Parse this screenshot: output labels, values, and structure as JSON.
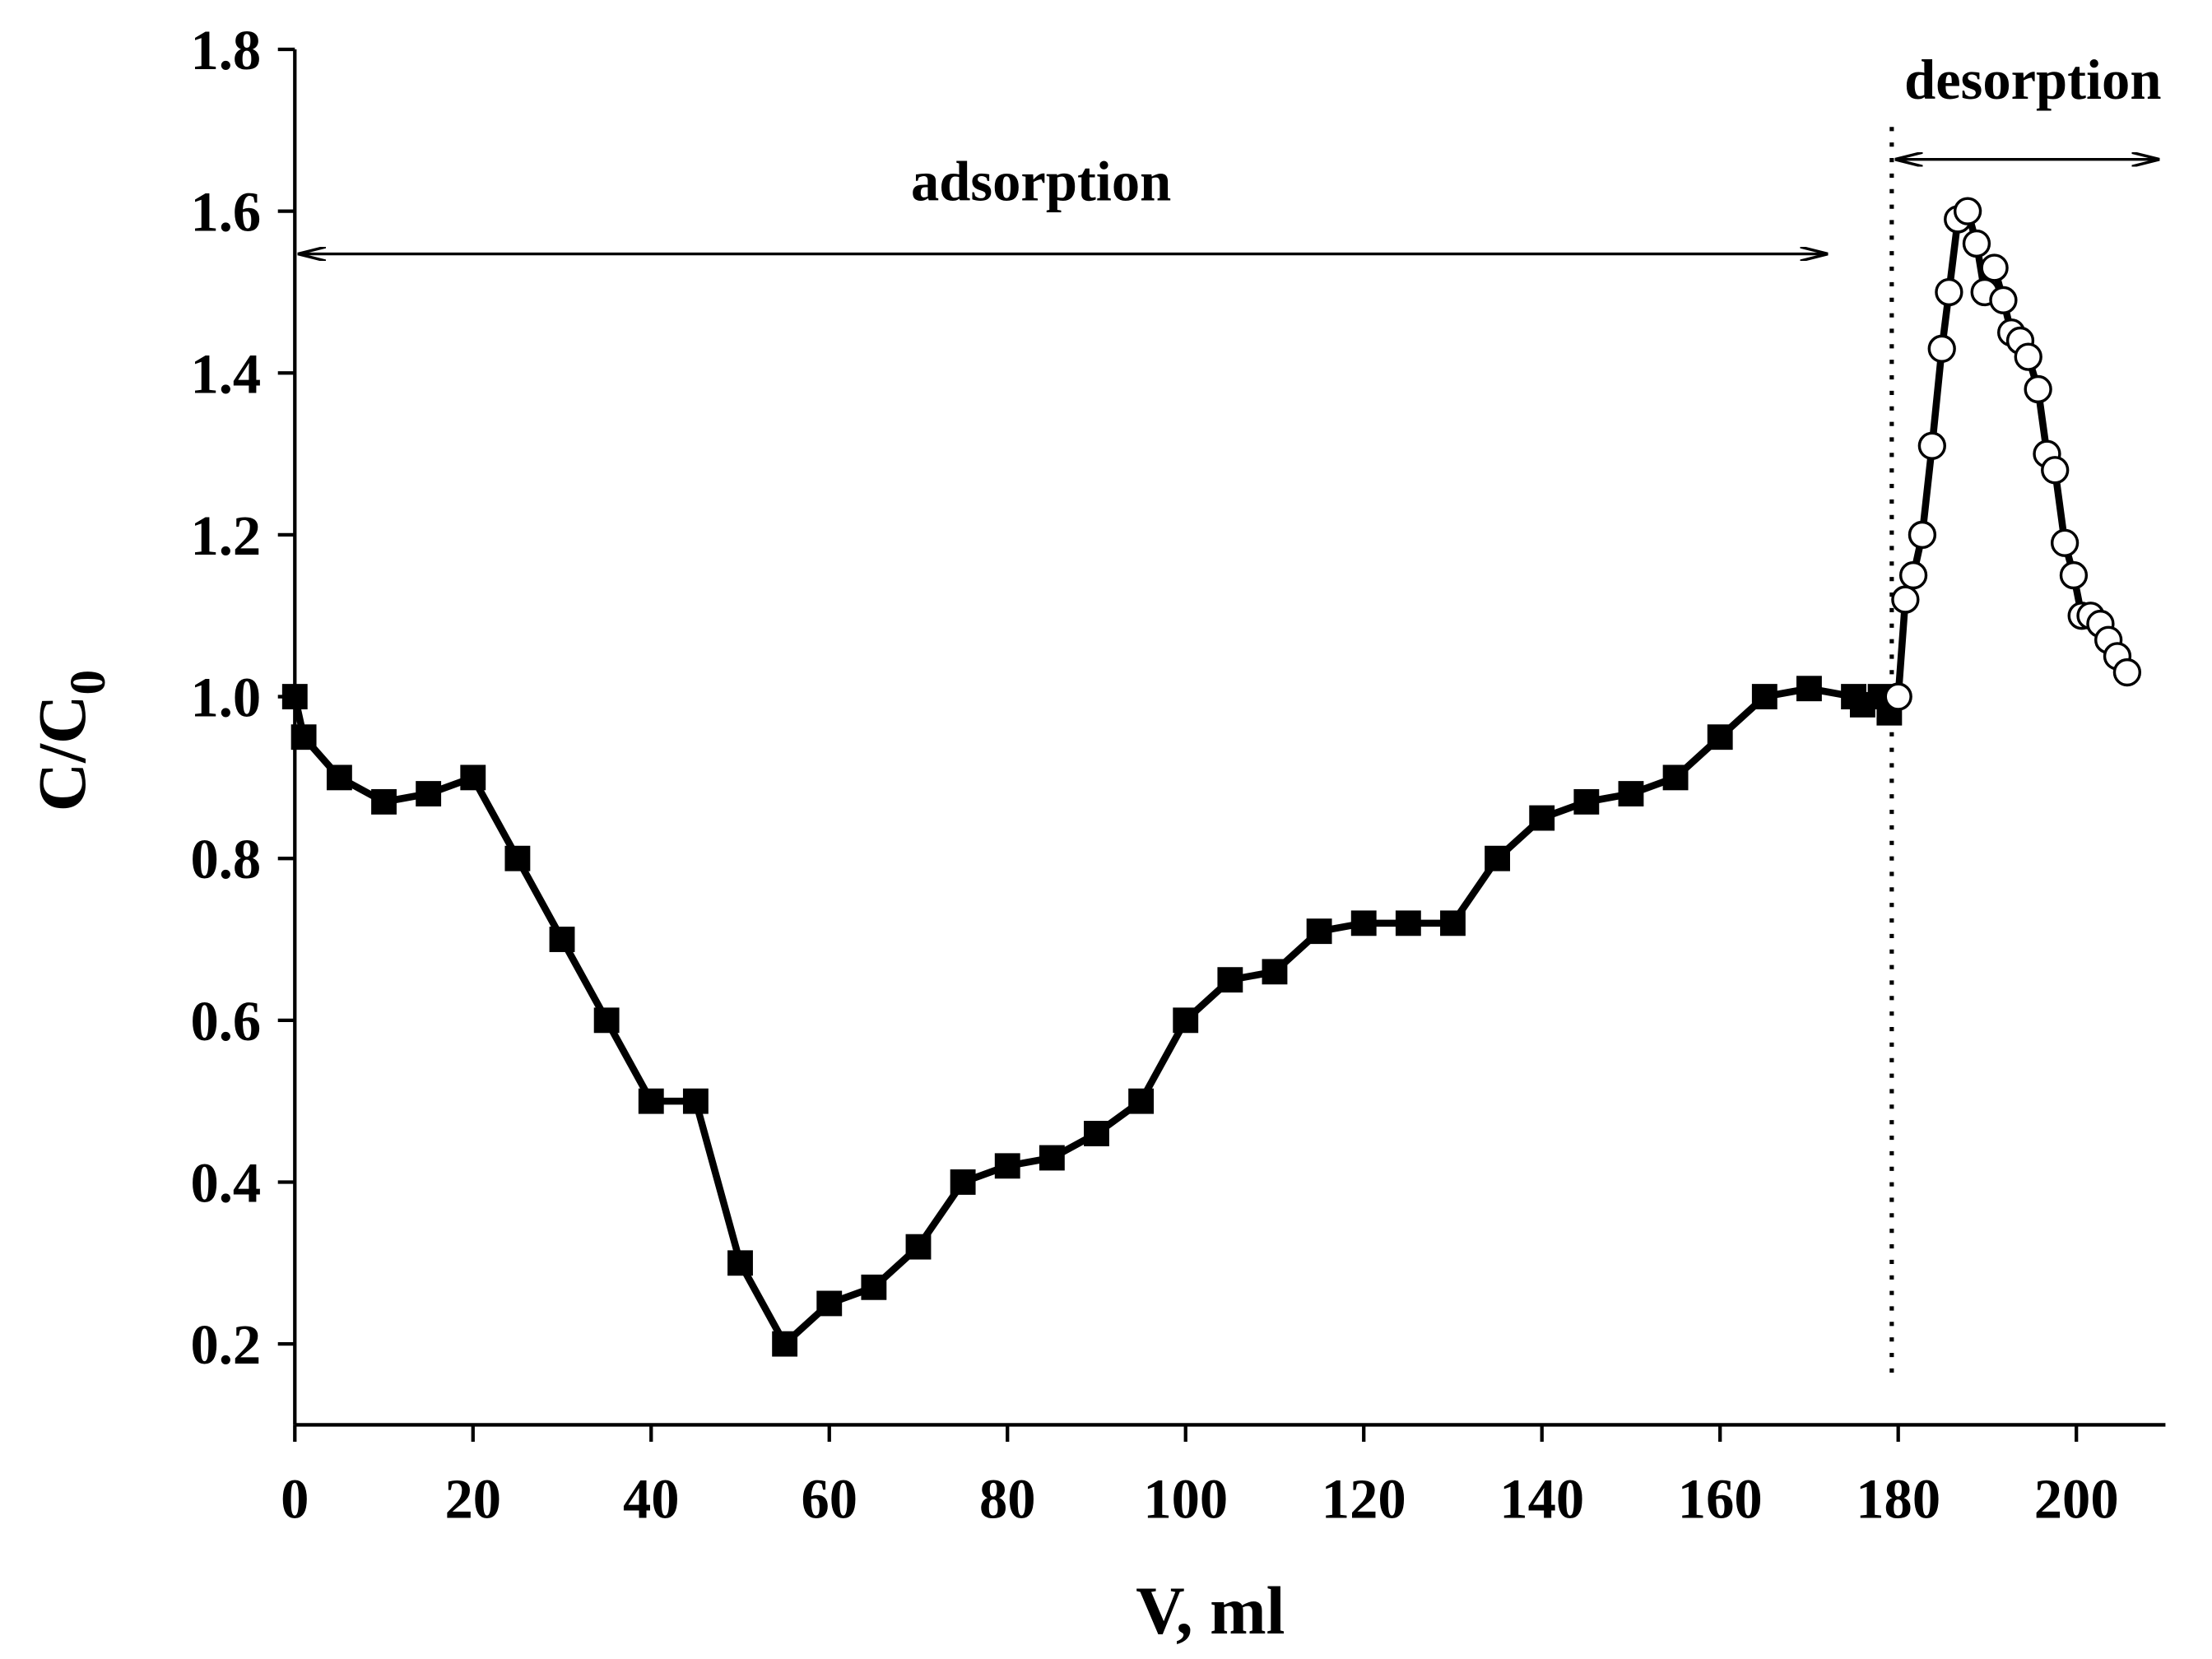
{
  "chart_data": {
    "type": "line",
    "xlabel": "V, ml",
    "ylabel": "C/C",
    "ylabel_sub": "0",
    "annotations": [
      "adsorption",
      "desorption"
    ],
    "xlim": [
      0,
      210
    ],
    "xticks": [
      0,
      20,
      40,
      60,
      80,
      100,
      120,
      140,
      160,
      180,
      200
    ],
    "ylim": [
      0.1,
      1.8
    ],
    "yticks": [
      0.2,
      0.4,
      0.6,
      0.8,
      {
        "value": 1.0,
        "label": "1.0"
      },
      1.2,
      1.4,
      1.6,
      1.8
    ],
    "series": [
      {
        "marker": "square",
        "color": "#000000",
        "x": [
          0,
          1,
          5,
          10,
          15,
          20,
          25,
          30,
          35,
          40,
          45,
          50,
          55,
          60,
          65,
          70,
          75,
          80,
          85,
          90,
          95,
          100,
          105,
          110,
          115,
          120,
          125,
          130,
          135,
          140,
          145,
          150,
          155,
          160,
          165,
          170,
          175,
          176,
          178,
          179
        ],
        "values": [
          1.0,
          0.95,
          0.9,
          0.87,
          0.88,
          0.9,
          0.8,
          0.7,
          0.6,
          0.5,
          0.5,
          0.3,
          0.2,
          0.25,
          0.27,
          0.32,
          0.4,
          0.42,
          0.43,
          0.46,
          0.5,
          0.6,
          0.65,
          0.66,
          0.71,
          0.72,
          0.72,
          0.72,
          0.8,
          0.85,
          0.87,
          0.88,
          0.9,
          0.95,
          1.0,
          1.01,
          1.0,
          0.99,
          1.0,
          0.98
        ]
      },
      {
        "marker": "circle",
        "color": "#000000",
        "x": [
          180,
          180.8,
          181.7,
          182.7,
          183.8,
          184.9,
          185.7,
          186.7,
          187.8,
          188.8,
          189.7,
          190.8,
          191.8,
          192.7,
          193.7,
          194.6,
          195.7,
          196.7,
          197.6,
          198.7,
          199.7,
          200.6,
          201.6,
          202.7,
          203.6,
          204.6,
          205.7
        ],
        "values": [
          1.0,
          1.12,
          1.15,
          1.2,
          1.31,
          1.43,
          1.5,
          1.59,
          1.6,
          1.56,
          1.5,
          1.53,
          1.49,
          1.45,
          1.44,
          1.42,
          1.38,
          1.3,
          1.28,
          1.19,
          1.15,
          1.1,
          1.1,
          1.09,
          1.07,
          1.05,
          1.03
        ]
      }
    ]
  }
}
